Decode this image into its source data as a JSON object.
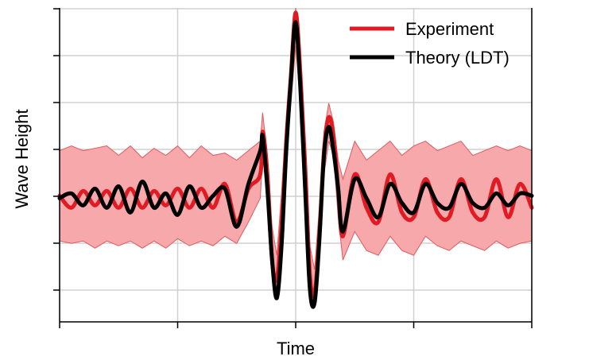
{
  "chart_data": {
    "type": "line",
    "title": "",
    "xlabel": "Time",
    "ylabel": "Wave Height",
    "xlim": [
      0,
      4
    ],
    "ylim": [
      -2.6,
      4.0
    ],
    "xtick_count": 5,
    "ytick_count": 7,
    "grid": true,
    "legend_position": "top-right",
    "x": [
      0.0,
      0.1,
      0.2,
      0.3,
      0.4,
      0.5,
      0.6,
      0.7,
      0.8,
      0.9,
      1.0,
      1.1,
      1.2,
      1.3,
      1.4,
      1.5,
      1.6,
      1.7,
      1.72,
      1.76,
      1.8,
      1.84,
      1.88,
      1.92,
      1.96,
      2.0,
      2.04,
      2.08,
      2.12,
      2.16,
      2.2,
      2.24,
      2.28,
      2.32,
      2.36,
      2.4,
      2.5,
      2.6,
      2.7,
      2.8,
      2.9,
      3.0,
      3.1,
      3.2,
      3.3,
      3.4,
      3.5,
      3.6,
      3.7,
      3.8,
      3.9,
      4.0
    ],
    "series": [
      {
        "name": "Experiment",
        "color": "#e01b24",
        "values": [
          0.05,
          -0.2,
          0.15,
          -0.15,
          0.15,
          -0.2,
          0.2,
          -0.2,
          0.15,
          -0.15,
          0.2,
          -0.2,
          0.2,
          -0.2,
          0.3,
          -0.5,
          0.2,
          0.5,
          1.4,
          0.5,
          -1.3,
          -1.7,
          -0.6,
          1.2,
          2.6,
          3.9,
          2.6,
          0.7,
          -1.6,
          -2.0,
          -0.8,
          1.0,
          1.7,
          1.3,
          0.2,
          -0.8,
          0.5,
          -0.2,
          -0.5,
          0.5,
          -0.3,
          -0.4,
          0.4,
          -0.3,
          -0.4,
          0.4,
          -0.3,
          -0.4,
          0.4,
          -0.4,
          0.3,
          -0.2
        ],
        "band_upper": [
          1.0,
          1.1,
          1.0,
          1.05,
          1.1,
          0.9,
          1.1,
          0.85,
          1.05,
          0.9,
          1.1,
          0.85,
          1.1,
          0.9,
          0.95,
          0.8,
          1.0,
          1.2,
          1.8,
          0.9,
          -0.6,
          -1.2,
          0.1,
          1.6,
          3.0,
          4.0,
          3.0,
          1.1,
          -1.0,
          -1.5,
          -0.2,
          1.4,
          2.0,
          1.6,
          0.8,
          0.4,
          1.2,
          0.8,
          1.0,
          1.2,
          0.9,
          1.1,
          1.2,
          1.0,
          1.1,
          1.2,
          0.9,
          1.0,
          1.1,
          1.0,
          1.1,
          1.0
        ],
        "band_lower": [
          -0.9,
          -0.95,
          -0.9,
          -1.05,
          -0.9,
          -1.0,
          -0.9,
          -1.05,
          -0.9,
          -1.05,
          -0.85,
          -1.0,
          -0.9,
          -1.0,
          -0.8,
          -0.95,
          -0.5,
          0.0,
          0.9,
          0.0,
          -1.6,
          -2.1,
          -1.0,
          0.8,
          2.0,
          3.2,
          2.0,
          0.2,
          -1.9,
          -2.3,
          -1.1,
          0.5,
          1.2,
          0.9,
          -0.4,
          -1.3,
          -0.7,
          -1.1,
          -1.2,
          -0.8,
          -1.1,
          -1.2,
          -0.8,
          -1.0,
          -1.1,
          -0.9,
          -1.0,
          -1.1,
          -0.9,
          -1.05,
          -0.95,
          -0.9
        ]
      },
      {
        "name": "Theory (LDT)",
        "color": "#000000",
        "values": [
          0.0,
          0.1,
          -0.15,
          0.2,
          -0.2,
          0.25,
          -0.3,
          0.35,
          -0.2,
          0.1,
          -0.35,
          0.25,
          -0.2,
          0.05,
          0.2,
          -0.6,
          0.3,
          1.0,
          1.3,
          0.2,
          -1.3,
          -2.1,
          -1.0,
          1.0,
          2.5,
          3.7,
          2.3,
          0.2,
          -1.9,
          -2.2,
          -0.9,
          0.9,
          1.5,
          1.0,
          0.2,
          -0.7,
          0.4,
          0.0,
          -0.4,
          0.3,
          -0.1,
          -0.3,
          0.3,
          -0.1,
          -0.2,
          0.3,
          -0.1,
          -0.2,
          0.1,
          -0.15,
          0.1,
          0.05
        ]
      }
    ]
  },
  "legend": {
    "items": [
      {
        "label": "Experiment",
        "color": "#e01b24"
      },
      {
        "label": "Theory (LDT)",
        "color": "#000000"
      }
    ]
  },
  "colors": {
    "band_fill": "#f7a8aa",
    "band_edge": "#e05a5e",
    "grid": "#d0d0d0",
    "axis": "#000000"
  }
}
